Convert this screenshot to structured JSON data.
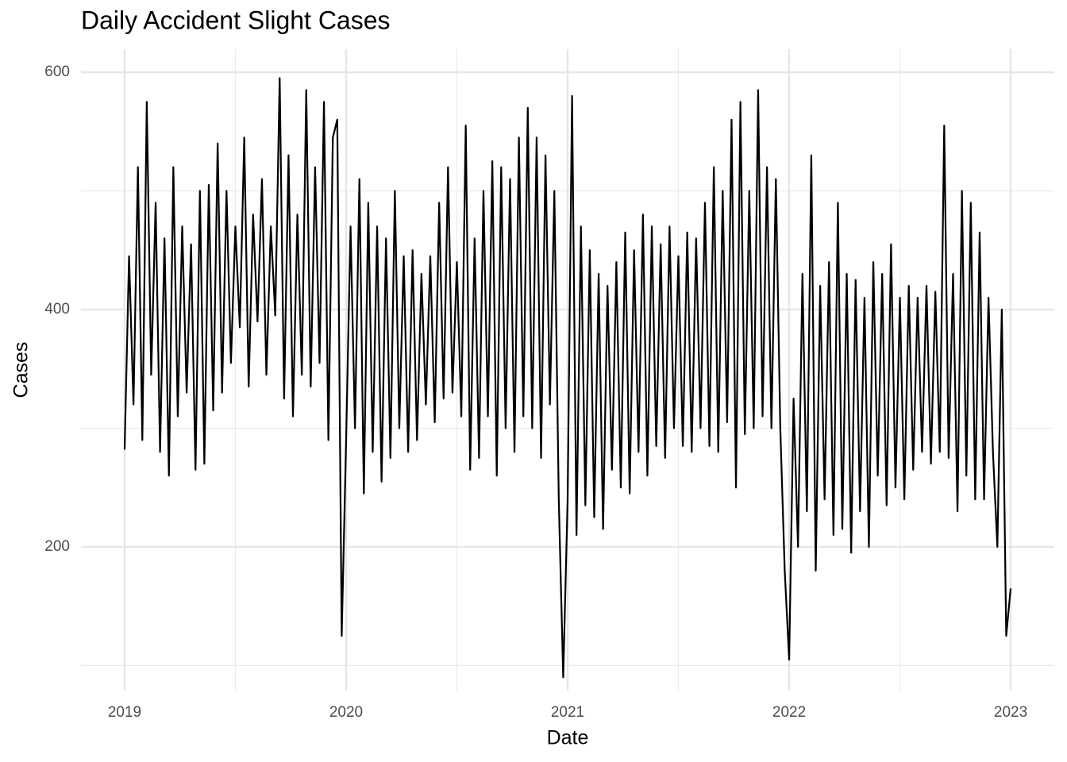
{
  "chart_data": {
    "type": "line",
    "title": "Daily Accident Slight Cases",
    "x_label": "Date",
    "y_label": "Cases",
    "color": "#000000",
    "grid": true,
    "xlim": [
      2018.803,
      2023.197
    ],
    "ylim": [
      78.9,
      619.4
    ],
    "xticks": [
      2019,
      2020,
      2021,
      2022,
      2023
    ],
    "yticks": [
      200,
      400,
      600
    ],
    "x": [
      2019,
      2019.02,
      2019.04,
      2019.06,
      2019.08,
      2019.1,
      2019.12,
      2019.14,
      2019.16,
      2019.18,
      2019.2,
      2019.22,
      2019.24,
      2019.26,
      2019.28,
      2019.3,
      2019.32,
      2019.34,
      2019.36,
      2019.38,
      2019.4,
      2019.42,
      2019.44,
      2019.46,
      2019.48,
      2019.5,
      2019.52,
      2019.54,
      2019.56,
      2019.58,
      2019.6,
      2019.62,
      2019.64,
      2019.66,
      2019.68,
      2019.7,
      2019.72,
      2019.74,
      2019.76,
      2019.78,
      2019.8,
      2019.82,
      2019.84,
      2019.86,
      2019.88,
      2019.9,
      2019.92,
      2019.94,
      2019.96,
      2019.98,
      2020,
      2020.02,
      2020.04,
      2020.06,
      2020.08,
      2020.1,
      2020.12,
      2020.14,
      2020.16,
      2020.18,
      2020.2,
      2020.22,
      2020.24,
      2020.26,
      2020.28,
      2020.3,
      2020.32,
      2020.34,
      2020.36,
      2020.38,
      2020.4,
      2020.42,
      2020.44,
      2020.46,
      2020.48,
      2020.5,
      2020.52,
      2020.54,
      2020.56,
      2020.58,
      2020.6,
      2020.62,
      2020.64,
      2020.66,
      2020.68,
      2020.7,
      2020.72,
      2020.74,
      2020.76,
      2020.78,
      2020.8,
      2020.82,
      2020.84,
      2020.86,
      2020.88,
      2020.9,
      2020.92,
      2020.94,
      2020.96,
      2020.98,
      2021,
      2021.02,
      2021.04,
      2021.06,
      2021.08,
      2021.1,
      2021.12,
      2021.14,
      2021.16,
      2021.18,
      2021.2,
      2021.22,
      2021.24,
      2021.26,
      2021.28,
      2021.3,
      2021.32,
      2021.34,
      2021.36,
      2021.38,
      2021.4,
      2021.42,
      2021.44,
      2021.46,
      2021.48,
      2021.5,
      2021.52,
      2021.54,
      2021.56,
      2021.58,
      2021.6,
      2021.62,
      2021.64,
      2021.66,
      2021.68,
      2021.7,
      2021.72,
      2021.74,
      2021.76,
      2021.78,
      2021.8,
      2021.82,
      2021.84,
      2021.86,
      2021.88,
      2021.9,
      2021.92,
      2021.94,
      2021.96,
      2021.98,
      2022,
      2022.02,
      2022.04,
      2022.06,
      2022.08,
      2022.1,
      2022.12,
      2022.14,
      2022.16,
      2022.18,
      2022.2,
      2022.22,
      2022.24,
      2022.26,
      2022.28,
      2022.3,
      2022.32,
      2022.34,
      2022.36,
      2022.38,
      2022.4,
      2022.42,
      2022.44,
      2022.46,
      2022.48,
      2022.5,
      2022.52,
      2022.54,
      2022.56,
      2022.58,
      2022.6,
      2022.62,
      2022.64,
      2022.66,
      2022.68,
      2022.7,
      2022.72,
      2022.74,
      2022.76,
      2022.78,
      2022.8,
      2022.82,
      2022.84,
      2022.86,
      2022.88,
      2022.9,
      2022.92,
      2022.94,
      2022.96,
      2022.98,
      2023
    ],
    "values": [
      282,
      445,
      320,
      520,
      290,
      575,
      345,
      490,
      280,
      460,
      260,
      520,
      310,
      470,
      330,
      455,
      265,
      500,
      270,
      505,
      315,
      540,
      330,
      500,
      355,
      470,
      385,
      545,
      335,
      480,
      390,
      510,
      345,
      470,
      395,
      595,
      325,
      530,
      310,
      480,
      345,
      585,
      335,
      520,
      355,
      575,
      290,
      545,
      560,
      125,
      290,
      470,
      300,
      510,
      245,
      490,
      280,
      470,
      255,
      460,
      275,
      500,
      300,
      445,
      280,
      450,
      290,
      430,
      320,
      445,
      305,
      490,
      325,
      520,
      330,
      440,
      310,
      555,
      265,
      460,
      275,
      500,
      310,
      525,
      260,
      520,
      300,
      510,
      280,
      545,
      310,
      570,
      300,
      545,
      275,
      530,
      320,
      500,
      240,
      90,
      240,
      580,
      210,
      470,
      235,
      450,
      225,
      430,
      215,
      420,
      265,
      440,
      250,
      465,
      245,
      450,
      280,
      480,
      260,
      470,
      285,
      455,
      275,
      470,
      300,
      445,
      285,
      465,
      280,
      460,
      300,
      490,
      285,
      520,
      280,
      500,
      305,
      560,
      250,
      575,
      295,
      500,
      300,
      585,
      310,
      520,
      300,
      510,
      300,
      180,
      105,
      325,
      200,
      430,
      230,
      530,
      180,
      420,
      240,
      440,
      210,
      490,
      215,
      430,
      195,
      425,
      230,
      410,
      200,
      440,
      260,
      430,
      235,
      455,
      250,
      410,
      240,
      420,
      265,
      410,
      280,
      420,
      270,
      415,
      280,
      555,
      275,
      430,
      230,
      500,
      260,
      490,
      240,
      465,
      240,
      410,
      280,
      200,
      400,
      125,
      165
    ]
  }
}
